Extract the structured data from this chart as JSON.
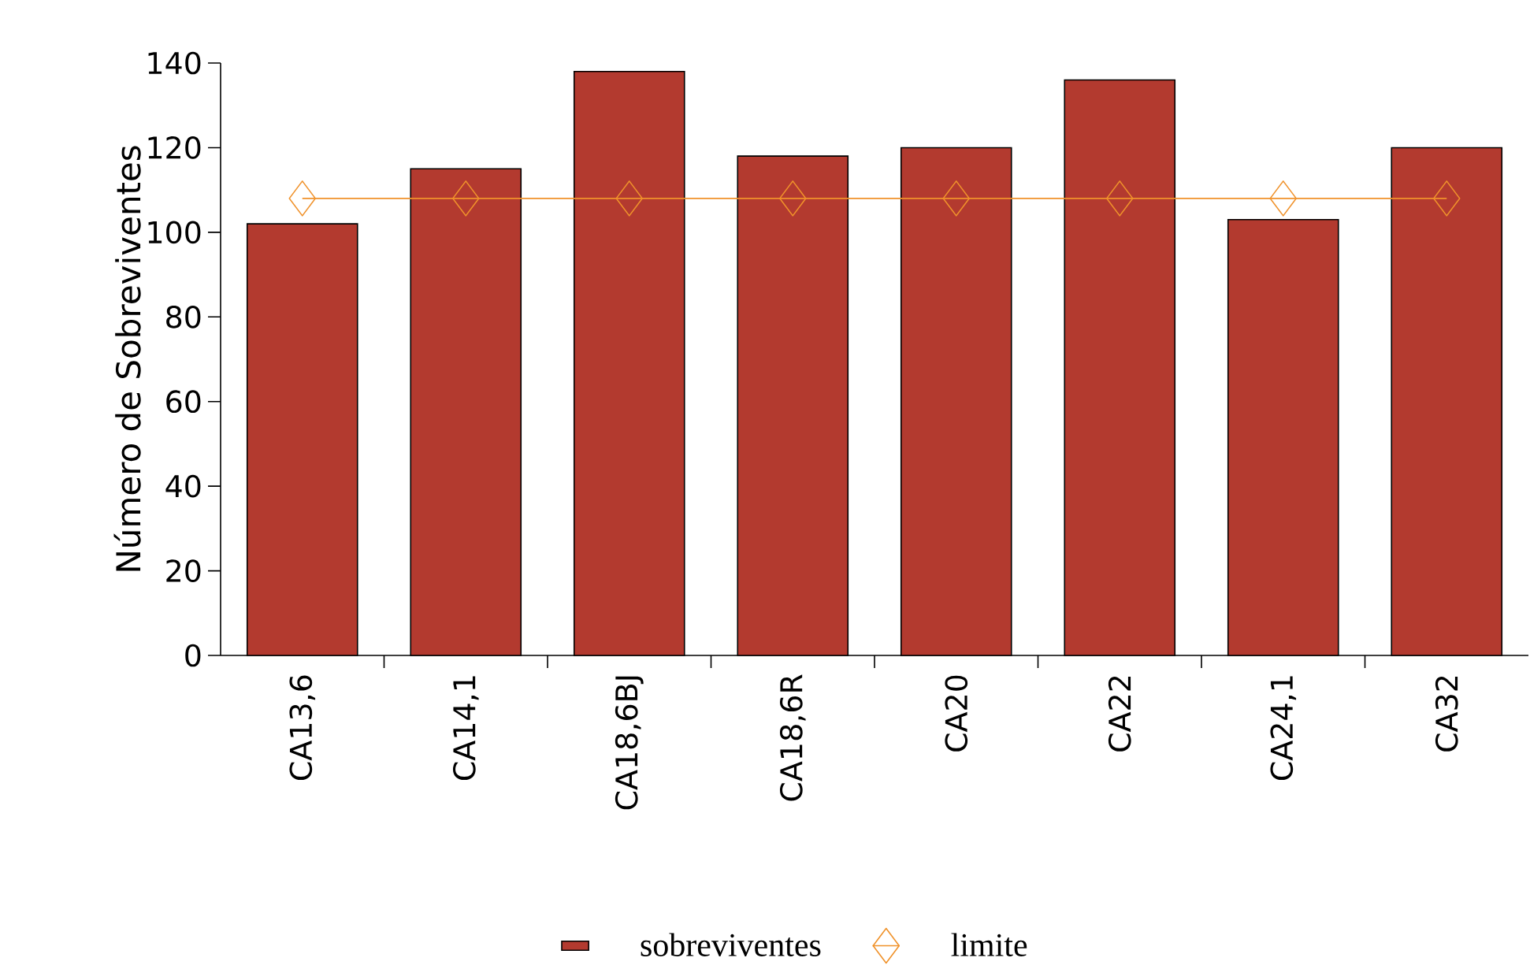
{
  "chart_data": {
    "type": "bar",
    "ylabel": "Número de Sobreviventes",
    "categories": [
      "CA13,6",
      "CA14,1",
      "CA18,6BJ",
      "CA18,6R",
      "CA20",
      "CA22",
      "CA24,1",
      "CA32"
    ],
    "series": [
      {
        "name": "sobreviventes",
        "color": "#b33a2f",
        "values": [
          102,
          115,
          138,
          118,
          120,
          136,
          103,
          120
        ]
      },
      {
        "name": "limite",
        "type": "line",
        "color": "#f0922b",
        "marker": "diamond",
        "values": [
          108,
          108,
          108,
          108,
          108,
          108,
          108,
          108
        ]
      }
    ],
    "ylim": [
      0,
      140
    ],
    "yticks": [
      0,
      20,
      40,
      60,
      80,
      100,
      120,
      140
    ],
    "legend": "bottom"
  }
}
